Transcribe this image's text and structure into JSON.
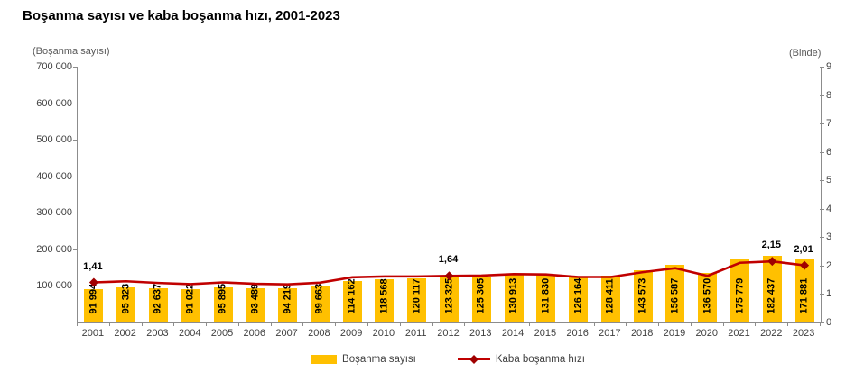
{
  "title": "Boşanma sayısı ve kaba boşanma hızı, 2001-2023",
  "chart_data": {
    "type": "combo",
    "title": "Boşanma sayısı ve kaba boşanma hızı, 2001-2023",
    "categories": [
      "2001",
      "2002",
      "2003",
      "2004",
      "2005",
      "2006",
      "2007",
      "2008",
      "2009",
      "2010",
      "2011",
      "2012",
      "2013",
      "2014",
      "2015",
      "2016",
      "2017",
      "2018",
      "2019",
      "2020",
      "2021",
      "2022",
      "2023"
    ],
    "series": [
      {
        "name": "Boşanma sayısı",
        "type": "bar",
        "axis": "left",
        "color": "#FFC000",
        "values": [
          91994,
          95323,
          92637,
          91022,
          95895,
          93489,
          94219,
          99663,
          114162,
          118568,
          120117,
          123325,
          125305,
          130913,
          131830,
          126164,
          128411,
          143573,
          156587,
          136570,
          175779,
          182437,
          171881
        ],
        "value_labels": [
          "91 994",
          "95 323",
          "92 637",
          "91 022",
          "95 895",
          "93 489",
          "94 219",
          "99 663",
          "114 162",
          "118 568",
          "120 117",
          "123 325",
          "125 305",
          "130 913",
          "131 830",
          "126 164",
          "128 411",
          "143 573",
          "156 587",
          "136 570",
          "175 779",
          "182 437",
          "171 881"
        ]
      },
      {
        "name": "Kaba boşanma hızı",
        "type": "line",
        "axis": "right",
        "color": "#C00000",
        "marker_color": "#A00000",
        "values": [
          1.41,
          1.45,
          1.39,
          1.35,
          1.41,
          1.36,
          1.34,
          1.4,
          1.59,
          1.62,
          1.62,
          1.64,
          1.65,
          1.7,
          1.69,
          1.6,
          1.6,
          1.77,
          1.91,
          1.64,
          2.1,
          2.15,
          2.01
        ],
        "point_labels": [
          {
            "index": 0,
            "text": "1,41"
          },
          {
            "index": 11,
            "text": "1,64"
          },
          {
            "index": 21,
            "text": "2,15"
          },
          {
            "index": 22,
            "text": "2,01"
          }
        ]
      }
    ],
    "left_axis": {
      "unit_label": "(Boşanma sayısı)",
      "min": 0,
      "max": 700000,
      "ticks": [
        {
          "label": "700 000",
          "value": 700000
        },
        {
          "label": "600 000",
          "value": 600000
        },
        {
          "label": "500 000",
          "value": 500000
        },
        {
          "label": "400 000",
          "value": 400000
        },
        {
          "label": "300 000",
          "value": 300000
        },
        {
          "label": "200 000",
          "value": 200000
        },
        {
          "label": "100 000",
          "value": 100000
        }
      ]
    },
    "right_axis": {
      "unit_label": "(Binde)",
      "min": 0,
      "max": 9,
      "ticks": [
        {
          "label": "9",
          "value": 9
        },
        {
          "label": "8",
          "value": 8
        },
        {
          "label": "7",
          "value": 7
        },
        {
          "label": "6",
          "value": 6
        },
        {
          "label": "5",
          "value": 5
        },
        {
          "label": "4",
          "value": 4
        },
        {
          "label": "3",
          "value": 3
        },
        {
          "label": "2",
          "value": 2
        },
        {
          "label": "1",
          "value": 1
        },
        {
          "label": "0",
          "value": 0
        }
      ]
    },
    "legend": {
      "position": "bottom",
      "items": [
        "Boşanma sayısı",
        "Kaba boşanma hızı"
      ]
    },
    "grid": false,
    "axis_color": "#8c8c8c"
  }
}
